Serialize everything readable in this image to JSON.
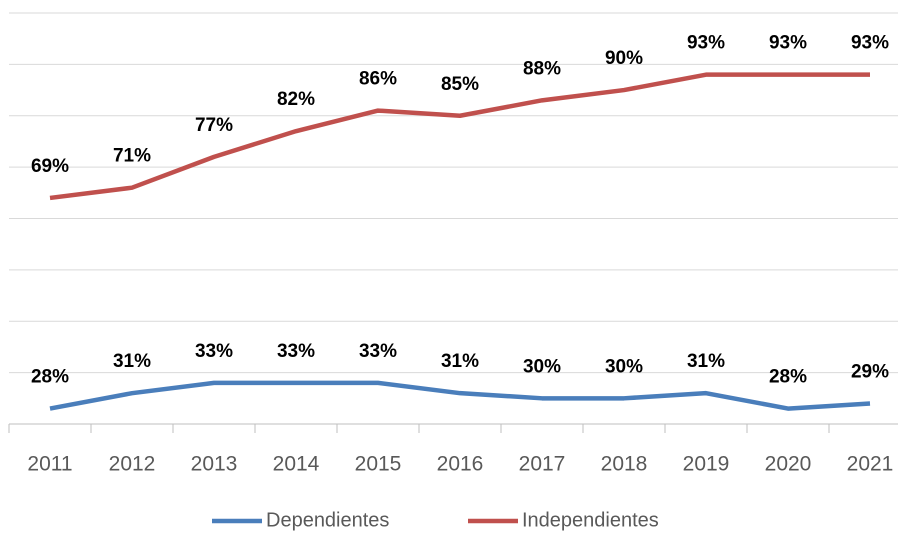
{
  "chart_data": {
    "type": "line",
    "categories": [
      "2011",
      "2012",
      "2013",
      "2014",
      "2015",
      "2016",
      "2017",
      "2018",
      "2019",
      "2020",
      "2021"
    ],
    "series": [
      {
        "name": "Dependientes",
        "color": "#4a7ebb",
        "values": [
          28,
          31,
          33,
          33,
          33,
          31,
          30,
          30,
          31,
          28,
          29
        ],
        "value_labels": [
          "28%",
          "31%",
          "33%",
          "33%",
          "33%",
          "31%",
          "30%",
          "30%",
          "31%",
          "28%",
          "29%"
        ]
      },
      {
        "name": "Independientes",
        "color": "#c0504d",
        "values": [
          69,
          71,
          77,
          82,
          86,
          85,
          88,
          90,
          93,
          93,
          93
        ],
        "value_labels": [
          "69%",
          "71%",
          "77%",
          "82%",
          "86%",
          "85%",
          "88%",
          "90%",
          "93%",
          "93%",
          "93%"
        ]
      }
    ],
    "ylim": [
      25,
      105
    ],
    "yticks": [
      25,
      35,
      45,
      55,
      65,
      75,
      85,
      95,
      105
    ],
    "grid": true,
    "legend": "bottom"
  }
}
